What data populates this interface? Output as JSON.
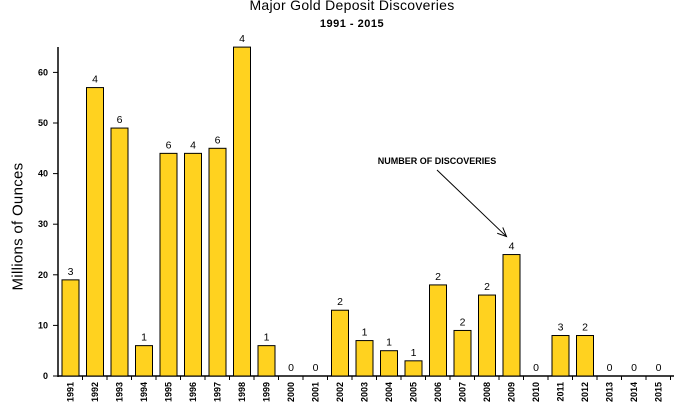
{
  "chart_data": {
    "type": "bar",
    "title": "Major Gold Deposit Discoveries",
    "subtitle": "1991 - 2015",
    "ylabel": "Millions of Ounces",
    "xlabel": "",
    "ylim": [
      0,
      65
    ],
    "yticks": [
      0,
      10,
      20,
      30,
      40,
      50,
      60
    ],
    "grid": false,
    "categories": [
      "1991",
      "1992",
      "1993",
      "1994",
      "1995",
      "1996",
      "1997",
      "1998",
      "1999",
      "2000",
      "2001",
      "2002",
      "2003",
      "2004",
      "2005",
      "2006",
      "2007",
      "2008",
      "2009",
      "2010",
      "2011",
      "2012",
      "2013",
      "2014",
      "2015"
    ],
    "values": [
      19,
      57,
      49,
      6,
      44,
      44,
      45,
      65,
      6,
      0,
      0,
      13,
      7,
      5,
      3,
      18,
      9,
      16,
      24,
      0,
      8,
      8,
      0,
      0,
      0
    ],
    "data_labels": [
      "3",
      "4",
      "6",
      "1",
      "6",
      "4",
      "6",
      "4",
      "1",
      "0",
      "0",
      "2",
      "1",
      "1",
      "1",
      "2",
      "2",
      "2",
      "4",
      "0",
      "3",
      "2",
      "0",
      "0",
      "0"
    ],
    "bar_color": "#FFD21F",
    "annotation": {
      "text": "NUMBER OF DISCOVERIES",
      "points_to": "2009"
    }
  }
}
